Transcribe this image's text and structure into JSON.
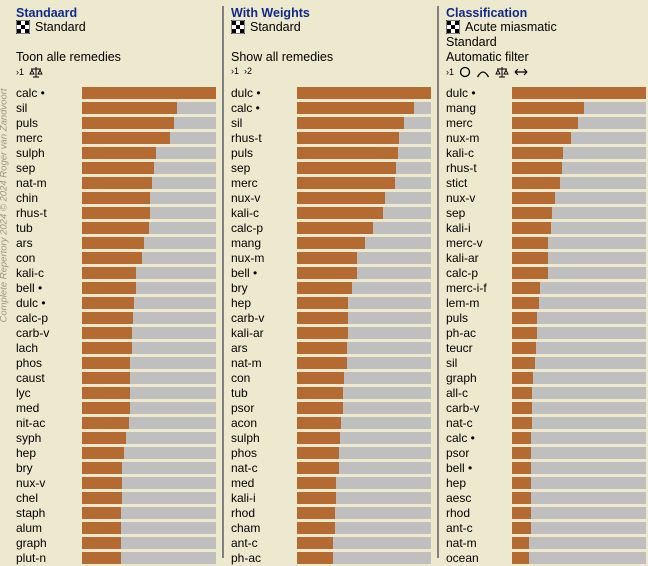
{
  "watermark": "Complete Repertory 2024 © 2024 Roger van Zandvoort",
  "columns": [
    {
      "title": "Standaard",
      "meta": [
        "Standard"
      ],
      "filter": "Toon alle remedies",
      "icons": [
        "sort-1-icon",
        "scale-icon"
      ],
      "rows": [
        {
          "label": "calc •",
          "value": 1.0
        },
        {
          "label": "sil",
          "value": 0.71
        },
        {
          "label": "puls",
          "value": 0.69
        },
        {
          "label": "merc",
          "value": 0.66
        },
        {
          "label": "sulph",
          "value": 0.55
        },
        {
          "label": "sep",
          "value": 0.54
        },
        {
          "label": "nat-m",
          "value": 0.52
        },
        {
          "label": "chin",
          "value": 0.51
        },
        {
          "label": "rhus-t",
          "value": 0.51
        },
        {
          "label": "tub",
          "value": 0.5
        },
        {
          "label": "ars",
          "value": 0.46
        },
        {
          "label": "con",
          "value": 0.45
        },
        {
          "label": "kali-c",
          "value": 0.4
        },
        {
          "label": "bell •",
          "value": 0.4
        },
        {
          "label": "dulc •",
          "value": 0.39
        },
        {
          "label": "calc-p",
          "value": 0.38
        },
        {
          "label": "carb-v",
          "value": 0.37
        },
        {
          "label": "lach",
          "value": 0.37
        },
        {
          "label": "phos",
          "value": 0.36
        },
        {
          "label": "caust",
          "value": 0.36
        },
        {
          "label": "lyc",
          "value": 0.36
        },
        {
          "label": "med",
          "value": 0.36
        },
        {
          "label": "nit-ac",
          "value": 0.35
        },
        {
          "label": "syph",
          "value": 0.33
        },
        {
          "label": "hep",
          "value": 0.31
        },
        {
          "label": "bry",
          "value": 0.3
        },
        {
          "label": "nux-v",
          "value": 0.3
        },
        {
          "label": "chel",
          "value": 0.3
        },
        {
          "label": "staph",
          "value": 0.29
        },
        {
          "label": "alum",
          "value": 0.29
        },
        {
          "label": "graph",
          "value": 0.29
        },
        {
          "label": "plut-n",
          "value": 0.29
        }
      ]
    },
    {
      "title": "With Weights",
      "meta": [
        "Standard"
      ],
      "filter": "Show all remedies",
      "icons": [
        "sort-1-icon",
        "sort-2-icon"
      ],
      "rows": [
        {
          "label": "dulc •",
          "value": 1.0
        },
        {
          "label": "calc •",
          "value": 0.87
        },
        {
          "label": "sil",
          "value": 0.8
        },
        {
          "label": "rhus-t",
          "value": 0.76
        },
        {
          "label": "puls",
          "value": 0.75
        },
        {
          "label": "sep",
          "value": 0.74
        },
        {
          "label": "merc",
          "value": 0.73
        },
        {
          "label": "nux-v",
          "value": 0.66
        },
        {
          "label": "kali-c",
          "value": 0.64
        },
        {
          "label": "calc-p",
          "value": 0.57
        },
        {
          "label": "mang",
          "value": 0.51
        },
        {
          "label": "nux-m",
          "value": 0.45
        },
        {
          "label": "bell •",
          "value": 0.45
        },
        {
          "label": "bry",
          "value": 0.41
        },
        {
          "label": "hep",
          "value": 0.38
        },
        {
          "label": "carb-v",
          "value": 0.38
        },
        {
          "label": "kali-ar",
          "value": 0.38
        },
        {
          "label": "ars",
          "value": 0.37
        },
        {
          "label": "nat-m",
          "value": 0.37
        },
        {
          "label": "con",
          "value": 0.35
        },
        {
          "label": "tub",
          "value": 0.34
        },
        {
          "label": "psor",
          "value": 0.34
        },
        {
          "label": "acon",
          "value": 0.33
        },
        {
          "label": "sulph",
          "value": 0.32
        },
        {
          "label": "phos",
          "value": 0.31
        },
        {
          "label": "nat-c",
          "value": 0.31
        },
        {
          "label": "med",
          "value": 0.29
        },
        {
          "label": "kali-i",
          "value": 0.29
        },
        {
          "label": "rhod",
          "value": 0.28
        },
        {
          "label": "cham",
          "value": 0.28
        },
        {
          "label": "ant-c",
          "value": 0.27
        },
        {
          "label": "ph-ac",
          "value": 0.27
        }
      ]
    },
    {
      "title": "Classification",
      "meta": [
        "Acute miasmatic",
        "Standard"
      ],
      "filter": "Automatic filter",
      "icons": [
        "sort-1-icon",
        "circle-icon",
        "arc-icon",
        "scale-icon",
        "double-arrow-icon"
      ],
      "rows": [
        {
          "label": "dulc •",
          "value": 1.0
        },
        {
          "label": "mang",
          "value": 0.54
        },
        {
          "label": "merc",
          "value": 0.49
        },
        {
          "label": "nux-m",
          "value": 0.44
        },
        {
          "label": "kali-c",
          "value": 0.38
        },
        {
          "label": "rhus-t",
          "value": 0.37
        },
        {
          "label": "stict",
          "value": 0.36
        },
        {
          "label": "nux-v",
          "value": 0.32
        },
        {
          "label": "sep",
          "value": 0.3
        },
        {
          "label": "kali-i",
          "value": 0.29
        },
        {
          "label": "merc-v",
          "value": 0.27
        },
        {
          "label": "kali-ar",
          "value": 0.27
        },
        {
          "label": "calc-p",
          "value": 0.27
        },
        {
          "label": "merc-i-f",
          "value": 0.21
        },
        {
          "label": "lem-m",
          "value": 0.2
        },
        {
          "label": "puls",
          "value": 0.19
        },
        {
          "label": "ph-ac",
          "value": 0.19
        },
        {
          "label": "teucr",
          "value": 0.18
        },
        {
          "label": "sil",
          "value": 0.17
        },
        {
          "label": "graph",
          "value": 0.16
        },
        {
          "label": "all-c",
          "value": 0.15
        },
        {
          "label": "carb-v",
          "value": 0.15
        },
        {
          "label": "nat-c",
          "value": 0.15
        },
        {
          "label": "calc •",
          "value": 0.14
        },
        {
          "label": "psor",
          "value": 0.14
        },
        {
          "label": "bell •",
          "value": 0.14
        },
        {
          "label": "hep",
          "value": 0.14
        },
        {
          "label": "aesc",
          "value": 0.14
        },
        {
          "label": "rhod",
          "value": 0.14
        },
        {
          "label": "ant-c",
          "value": 0.14
        },
        {
          "label": "nat-m",
          "value": 0.13
        },
        {
          "label": "ocean",
          "value": 0.13
        }
      ]
    }
  ],
  "colors": {
    "background": "#ede9cf",
    "title": "#102a8a",
    "bar_fill": "#b56a32",
    "bar_track": "#bfbfbf",
    "divider": "#808080"
  }
}
